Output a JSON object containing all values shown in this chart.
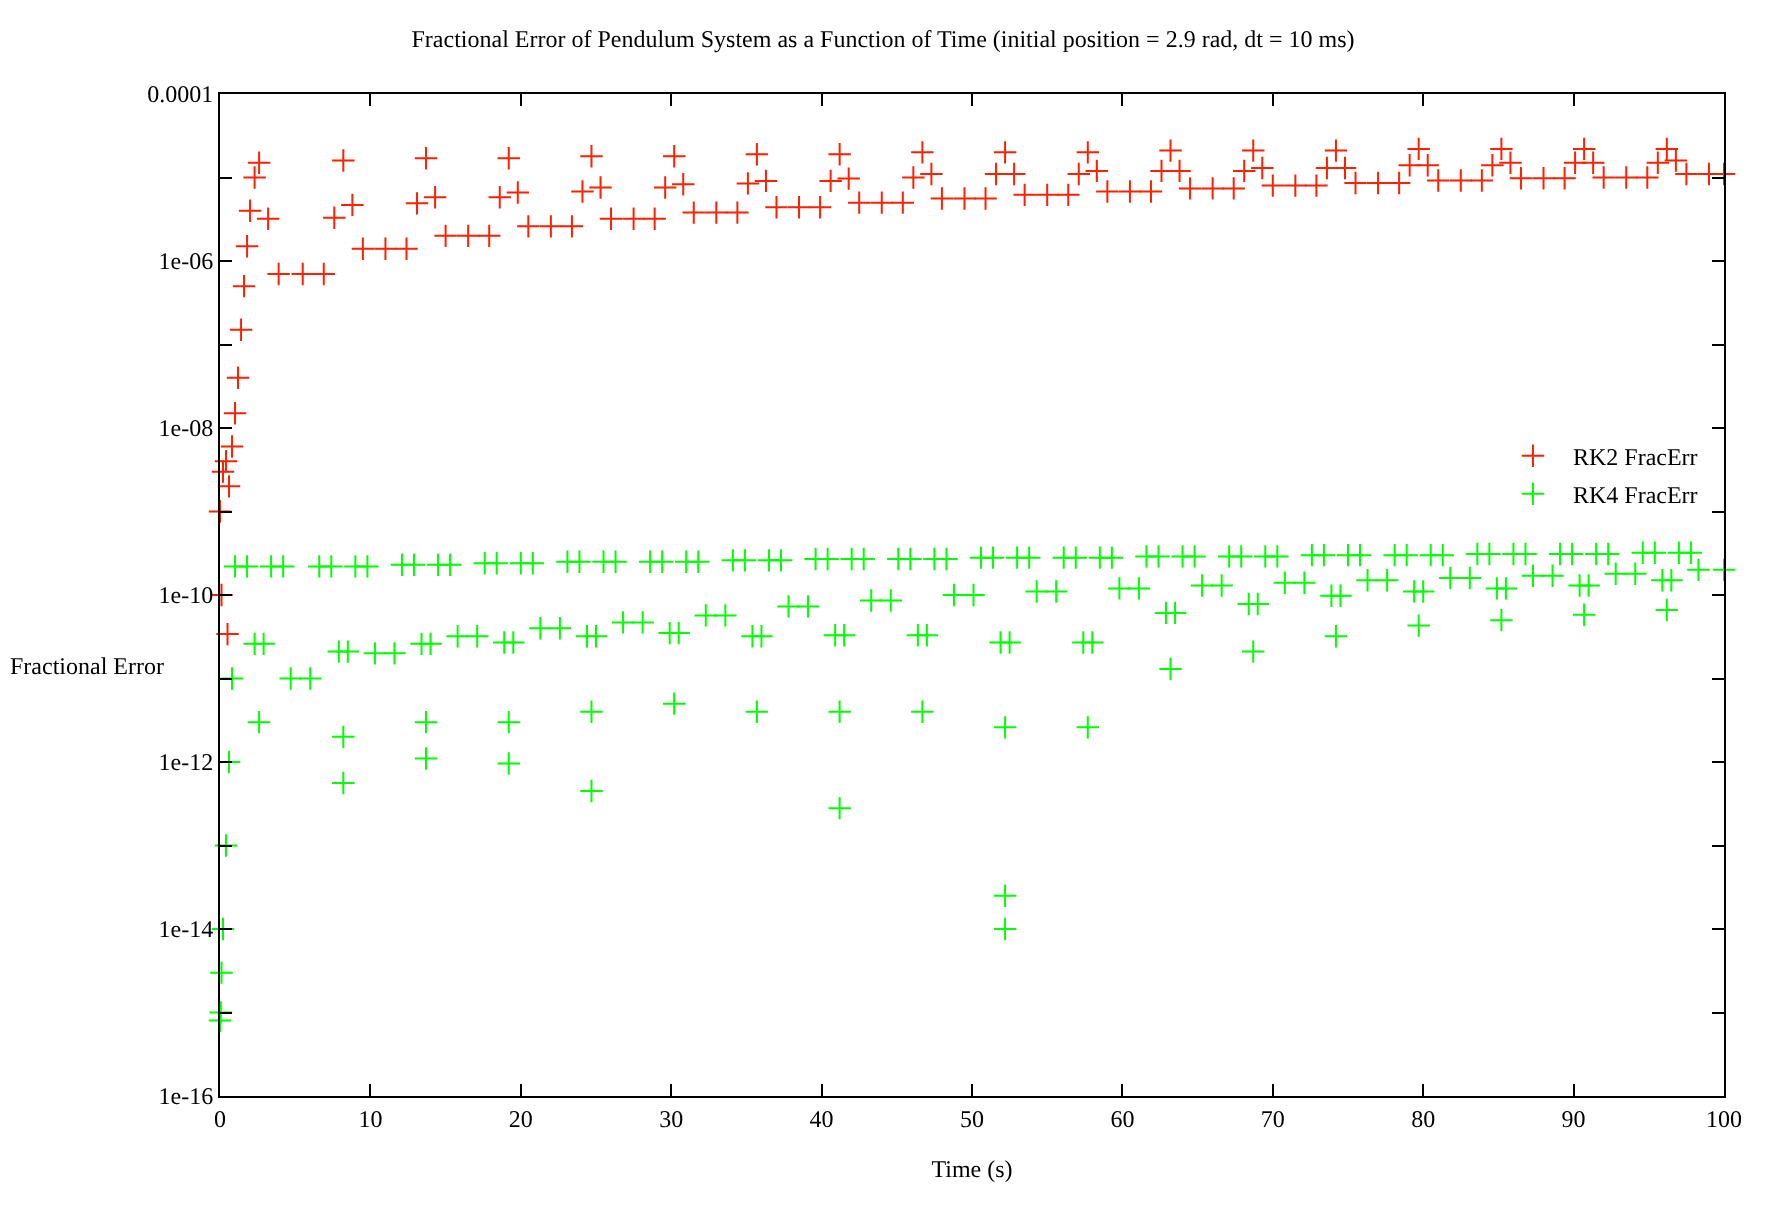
{
  "chart_data": {
    "type": "scatter",
    "title": "Fractional Error of Pendulum System as a Function of Time (initial position = 2.9 rad, dt = 10 ms)",
    "xlabel": "Time (s)",
    "ylabel": "Fractional Error",
    "log": "y",
    "legend": "right",
    "marker": "cross",
    "xlim": [
      0,
      100
    ],
    "xticks": [
      0,
      10,
      20,
      30,
      40,
      50,
      60,
      70,
      80,
      90,
      100
    ],
    "ylim": [
      1e-16,
      0.0001
    ],
    "yticks": [
      {
        "value": 1e-16,
        "label": "1e-16"
      },
      {
        "value": 1e-15,
        "label": null
      },
      {
        "value": 1e-14,
        "label": "1e-14"
      },
      {
        "value": 1e-13,
        "label": null
      },
      {
        "value": 1e-12,
        "label": "1e-12"
      },
      {
        "value": 1e-11,
        "label": null
      },
      {
        "value": 1e-10,
        "label": "1e-10"
      },
      {
        "value": 1e-09,
        "label": null
      },
      {
        "value": 1e-08,
        "label": "1e-08"
      },
      {
        "value": 1e-07,
        "label": null
      },
      {
        "value": 1e-06,
        "label": "1e-06"
      },
      {
        "value": 1e-05,
        "label": null
      },
      {
        "value": 0.0001,
        "label": "0.0001"
      }
    ],
    "series": [
      {
        "name": "RK2 FracErr",
        "color": "#ff2000",
        "x": [
          0,
          0.1,
          0.2,
          0.4,
          0.5,
          0.6,
          0.8,
          1.0,
          1.2,
          1.4,
          1.6,
          1.8,
          2.0,
          2.3,
          2.6,
          3.2,
          3.9,
          5.5,
          6.9,
          7.6,
          8.2,
          8.8,
          9.5,
          11.0,
          12.4,
          13.1,
          13.7,
          14.3,
          15.0,
          16.5,
          17.9,
          18.6,
          19.2,
          19.8,
          20.5,
          22.0,
          23.4,
          24.1,
          24.7,
          25.3,
          26.0,
          27.5,
          28.9,
          29.6,
          30.2,
          30.8,
          31.5,
          33.0,
          34.4,
          35.1,
          35.7,
          36.3,
          37.0,
          38.5,
          39.9,
          40.6,
          41.2,
          41.8,
          42.5,
          44.0,
          45.4,
          46.1,
          46.7,
          47.3,
          48.0,
          49.5,
          50.9,
          51.6,
          52.2,
          52.8,
          53.5,
          55.0,
          56.4,
          57.1,
          57.7,
          58.3,
          59.0,
          60.5,
          61.9,
          62.6,
          63.2,
          63.8,
          64.5,
          66.0,
          67.4,
          68.1,
          68.7,
          69.3,
          70.0,
          71.5,
          72.9,
          73.6,
          74.2,
          74.8,
          75.5,
          77.0,
          78.4,
          79.1,
          79.7,
          80.3,
          81.0,
          82.5,
          83.9,
          84.6,
          85.2,
          85.8,
          86.5,
          88.0,
          89.4,
          90.1,
          90.7,
          91.3,
          92.0,
          93.5,
          94.9,
          95.6,
          96.2,
          96.8,
          97.5,
          99.0,
          100
        ],
        "values": [
          1e-09,
          1e-10,
          3e-09,
          4e-09,
          3.4e-11,
          2e-09,
          6e-09,
          1.5e-08,
          4e-08,
          1.5e-07,
          5e-07,
          1.5e-06,
          4e-06,
          1e-05,
          1.5e-05,
          3.2e-06,
          7e-07,
          7e-07,
          7e-07,
          3.3e-06,
          1.6e-05,
          4.7e-06,
          1.4e-06,
          1.4e-06,
          1.4e-06,
          4.9e-06,
          1.7e-05,
          5.8e-06,
          2e-06,
          2e-06,
          2e-06,
          5.8e-06,
          1.7e-05,
          6.6e-06,
          2.6e-06,
          2.6e-06,
          2.6e-06,
          6.8e-06,
          1.8e-05,
          7.6e-06,
          3.2e-06,
          3.2e-06,
          3.2e-06,
          7.6e-06,
          1.8e-05,
          8.3e-06,
          3.8e-06,
          3.8e-06,
          3.8e-06,
          8.5e-06,
          1.9e-05,
          9.1e-06,
          4.4e-06,
          4.4e-06,
          4.4e-06,
          9.1e-06,
          1.9e-05,
          9.7e-06,
          5e-06,
          5e-06,
          5e-06,
          1e-05,
          2e-05,
          1.1e-05,
          5.6e-06,
          5.6e-06,
          5.6e-06,
          1.1e-05,
          2e-05,
          1.1e-05,
          6.2e-06,
          6.2e-06,
          6.2e-06,
          1.1e-05,
          2e-05,
          1.2e-05,
          6.8e-06,
          6.8e-06,
          6.8e-06,
          1.2e-05,
          2.1e-05,
          1.2e-05,
          7.4e-06,
          7.4e-06,
          7.4e-06,
          1.2e-05,
          2.1e-05,
          1.3e-05,
          8e-06,
          8e-06,
          8e-06,
          1.3e-05,
          2.1e-05,
          1.3e-05,
          8.6e-06,
          8.6e-06,
          8.6e-06,
          1.4e-05,
          2.2e-05,
          1.4e-05,
          9.2e-06,
          9.2e-06,
          9.2e-06,
          1.4e-05,
          2.2e-05,
          1.5e-05,
          9.8e-06,
          9.8e-06,
          9.8e-06,
          1.5e-05,
          2.2e-05,
          1.5e-05,
          1e-05,
          1e-05,
          1e-05,
          1.5e-05,
          2.2e-05,
          1.6e-05,
          1.1e-05,
          1.1e-05,
          1.1e-05
        ]
      },
      {
        "name": "RK4 FracErr",
        "color": "#00ff00",
        "x": [
          0,
          0.05,
          0.1,
          0.2,
          0.4,
          0.6,
          0.8,
          1.0,
          1.8,
          2.3,
          2.6,
          2.9,
          3.4,
          4.2,
          4.7,
          6.0,
          6.6,
          7.4,
          7.9,
          8.2,
          8.2,
          8.5,
          9.0,
          9.8,
          10.3,
          11.6,
          12.1,
          12.9,
          13.4,
          13.7,
          13.7,
          14.0,
          14.5,
          15.3,
          15.8,
          17.1,
          17.6,
          18.4,
          18.9,
          19.2,
          19.2,
          19.5,
          20.0,
          20.8,
          21.3,
          22.6,
          23.1,
          23.9,
          24.4,
          24.7,
          24.7,
          25.0,
          25.5,
          26.3,
          26.8,
          28.1,
          28.6,
          29.4,
          29.9,
          30.2,
          30.5,
          31.0,
          31.8,
          32.3,
          33.6,
          34.1,
          34.9,
          35.4,
          35.7,
          36.0,
          36.5,
          37.3,
          37.8,
          39.1,
          39.6,
          40.4,
          40.9,
          41.2,
          41.2,
          41.5,
          42.0,
          42.8,
          43.3,
          44.6,
          45.1,
          45.9,
          46.4,
          46.7,
          47.0,
          47.5,
          48.3,
          48.8,
          50.1,
          50.6,
          51.4,
          51.9,
          52.2,
          52.2,
          52.2,
          52.5,
          53.0,
          53.8,
          54.3,
          55.6,
          56.1,
          56.9,
          57.4,
          57.7,
          58.0,
          58.5,
          59.3,
          59.8,
          61.1,
          61.6,
          62.4,
          62.9,
          63.2,
          63.5,
          64.0,
          64.8,
          65.3,
          66.6,
          67.1,
          67.9,
          68.4,
          68.7,
          69.0,
          69.5,
          70.3,
          70.8,
          72.1,
          72.6,
          73.4,
          73.9,
          74.2,
          74.5,
          75.0,
          75.8,
          76.3,
          77.6,
          78.1,
          78.9,
          79.4,
          79.7,
          80.0,
          80.5,
          81.3,
          81.8,
          83.1,
          83.6,
          84.4,
          84.9,
          85.2,
          85.5,
          86.0,
          86.8,
          87.3,
          88.6,
          89.1,
          89.9,
          90.4,
          90.7,
          91.0,
          91.5,
          92.3,
          92.8,
          94.1,
          94.6,
          95.4,
          95.9,
          96.2,
          96.5,
          97.0,
          97.8,
          98.3,
          100
        ],
        "values": [
          8e-16,
          1e-15,
          3e-15,
          1e-14,
          1e-13,
          1e-12,
          1e-11,
          2.2e-10,
          2.2e-10,
          2.6e-11,
          3e-12,
          2.6e-11,
          2.2e-10,
          2.2e-10,
          1e-11,
          1e-11,
          2.2e-10,
          2.2e-10,
          2.1e-11,
          2e-12,
          5.6e-13,
          2.1e-11,
          2.2e-10,
          2.2e-10,
          2e-11,
          2e-11,
          2.3e-10,
          2.3e-10,
          2.6e-11,
          3e-12,
          1.1e-12,
          2.6e-11,
          2.3e-10,
          2.3e-10,
          3.2e-11,
          3.2e-11,
          2.4e-10,
          2.4e-10,
          2.7e-11,
          3e-12,
          9.6e-13,
          2.7e-11,
          2.4e-10,
          2.4e-10,
          4e-11,
          4e-11,
          2.5e-10,
          2.5e-10,
          3.2e-11,
          4e-12,
          4.5e-13,
          3.2e-11,
          2.5e-10,
          2.5e-10,
          4.7e-11,
          4.7e-11,
          2.5e-10,
          2.5e-10,
          3.5e-11,
          5e-12,
          3.5e-11,
          2.5e-10,
          2.5e-10,
          5.7e-11,
          5.7e-11,
          2.6e-10,
          2.6e-10,
          3.2e-11,
          4e-12,
          3.2e-11,
          2.6e-10,
          2.6e-10,
          7.3e-11,
          7.3e-11,
          2.7e-10,
          2.7e-10,
          3.3e-11,
          4e-12,
          2.8e-13,
          3.3e-11,
          2.7e-10,
          2.7e-10,
          8.6e-11,
          8.6e-11,
          2.7e-10,
          2.7e-10,
          3.3e-11,
          4e-12,
          3.3e-11,
          2.7e-10,
          2.7e-10,
          1e-10,
          1e-10,
          2.8e-10,
          2.8e-10,
          2.7e-11,
          2.6e-12,
          2.5e-14,
          1e-14,
          2.7e-11,
          2.8e-10,
          2.8e-10,
          1.1e-10,
          1.1e-10,
          2.8e-10,
          2.8e-10,
          2.7e-11,
          2.6e-12,
          2.7e-11,
          2.8e-10,
          2.8e-10,
          1.2e-10,
          1.2e-10,
          2.9e-10,
          2.9e-10,
          6.1e-11,
          1.3e-11,
          6.1e-11,
          2.9e-10,
          2.9e-10,
          1.3e-10,
          1.3e-10,
          2.9e-10,
          2.9e-10,
          7.8e-11,
          2.1e-11,
          7.8e-11,
          2.9e-10,
          2.9e-10,
          1.4e-10,
          1.4e-10,
          3e-10,
          3e-10,
          9.8e-11,
          3.2e-11,
          9.8e-11,
          3e-10,
          3e-10,
          1.5e-10,
          1.5e-10,
          3e-10,
          3e-10,
          1.1e-10,
          4.3e-11,
          1.1e-10,
          3e-10,
          3e-10,
          1.6e-10,
          1.6e-10,
          3.1e-10,
          3.1e-10,
          1.2e-10,
          5e-11,
          1.2e-10,
          3.1e-10,
          3.1e-10,
          1.7e-10,
          1.7e-10,
          3.1e-10,
          3.1e-10,
          1.3e-10,
          5.8e-11,
          1.3e-10,
          3.1e-10,
          3.1e-10,
          1.8e-10,
          1.8e-10,
          3.2e-10,
          3.2e-10,
          1.5e-10,
          6.6e-11,
          1.5e-10,
          3.2e-10,
          3.2e-10,
          2e-10,
          2e-10
        ]
      }
    ]
  }
}
